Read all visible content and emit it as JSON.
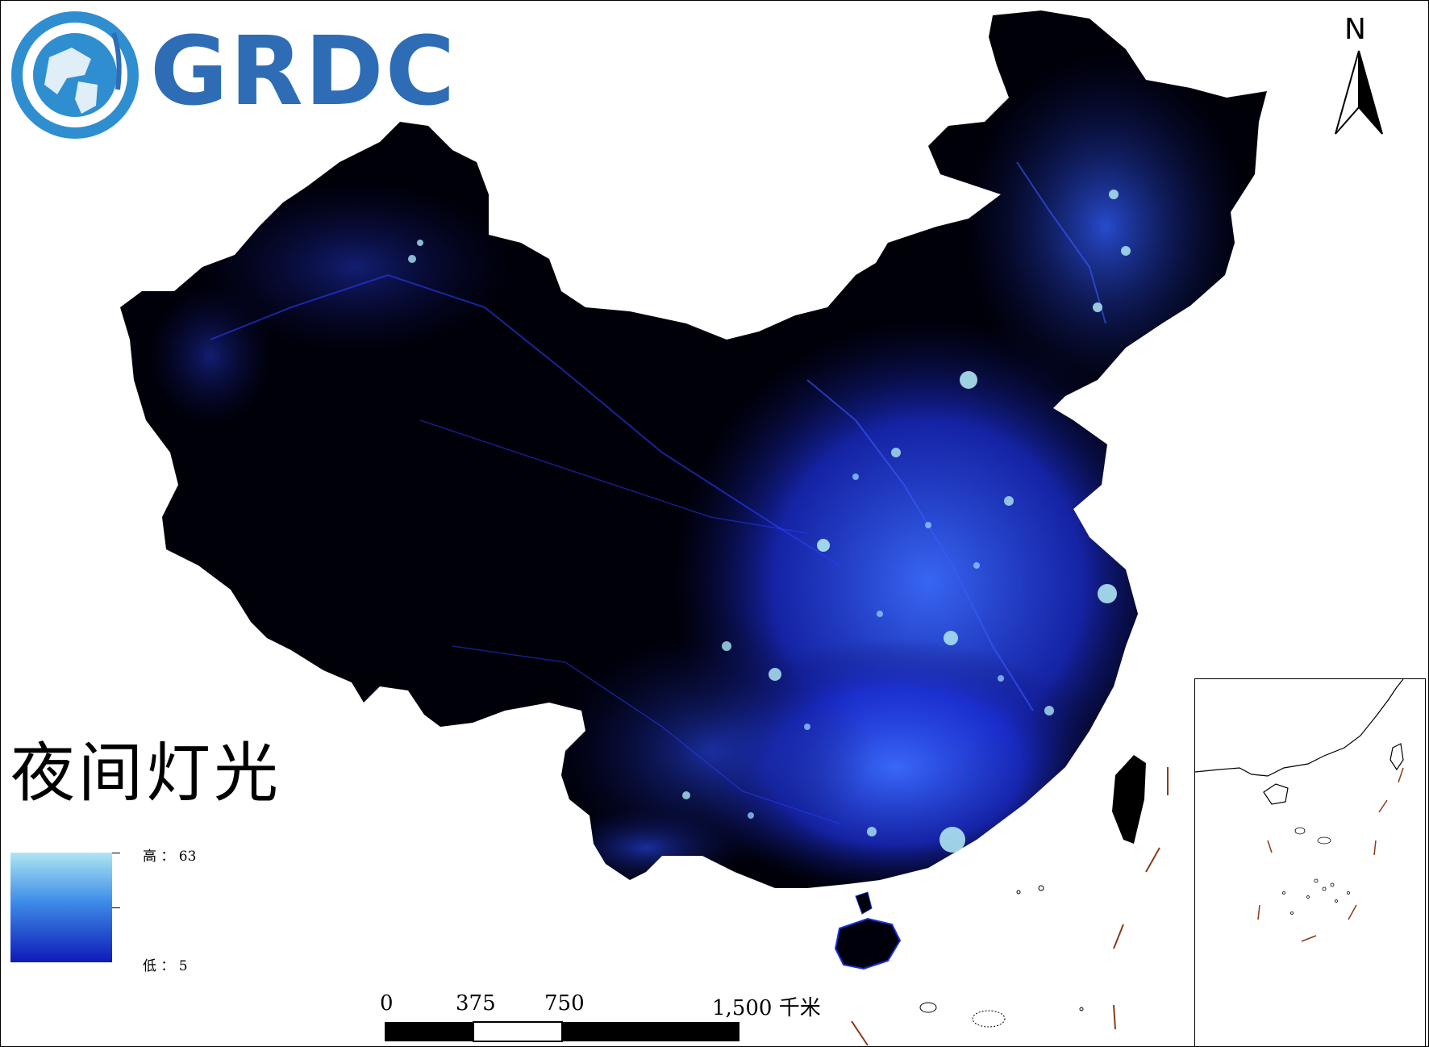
{
  "logo": {
    "text": "GRDC"
  },
  "title": "夜间灯光",
  "legend": {
    "high_label": "高 ： 63",
    "low_label": "低 ： 5",
    "high_value": 63,
    "low_value": 5,
    "colors": {
      "high": "#aee6f2",
      "mid": "#3d8ce8",
      "low": "#0f1ab8"
    }
  },
  "scale_bar": {
    "labels": [
      "0",
      "375",
      "750",
      "1,500 千米"
    ],
    "unit": "千米"
  },
  "north_arrow": {
    "label": "N"
  },
  "colors": {
    "background": "#ffffff",
    "land_dark": "#00000c",
    "light_blue": "#2a4bff",
    "logo_blue": "#2e6db5",
    "boundary_brown": "#8b3a1a"
  }
}
